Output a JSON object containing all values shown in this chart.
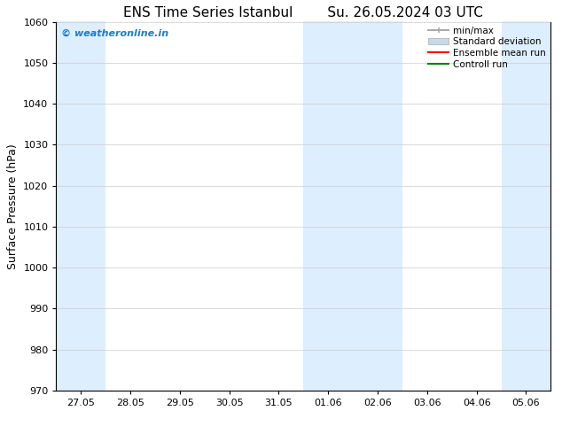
{
  "title1": "ENS Time Series Istanbul",
  "title2": "Su. 26.05.2024 03 UTC",
  "ylabel": "Surface Pressure (hPa)",
  "ylim": [
    970,
    1060
  ],
  "yticks": [
    970,
    980,
    990,
    1000,
    1010,
    1020,
    1030,
    1040,
    1050,
    1060
  ],
  "x_tick_labels": [
    "27.05",
    "28.05",
    "29.05",
    "30.05",
    "31.05",
    "01.06",
    "02.06",
    "03.06",
    "04.06",
    "05.06"
  ],
  "x_tick_positions": [
    0,
    1,
    2,
    3,
    4,
    5,
    6,
    7,
    8,
    9
  ],
  "xlim": [
    -0.5,
    9.5
  ],
  "shaded_bands": [
    {
      "x_start": -0.5,
      "x_end": 0.5
    },
    {
      "x_start": 4.5,
      "x_end": 6.5
    },
    {
      "x_start": 8.5,
      "x_end": 9.5
    }
  ],
  "shade_color": "#ddeeff",
  "watermark": "© weatheronline.in",
  "watermark_color": "#1a7cc9",
  "background_color": "#ffffff",
  "legend_items": [
    {
      "label": "min/max",
      "color": "#aaaaaa",
      "linewidth": 1.5
    },
    {
      "label": "Standard deviation",
      "color": "#c8daea",
      "linewidth": 8
    },
    {
      "label": "Ensemble mean run",
      "color": "red",
      "linewidth": 1.5
    },
    {
      "label": "Controll run",
      "color": "green",
      "linewidth": 1.5
    }
  ],
  "title_fontsize": 11,
  "label_fontsize": 9,
  "tick_fontsize": 8,
  "legend_fontsize": 7.5,
  "watermark_fontsize": 8
}
